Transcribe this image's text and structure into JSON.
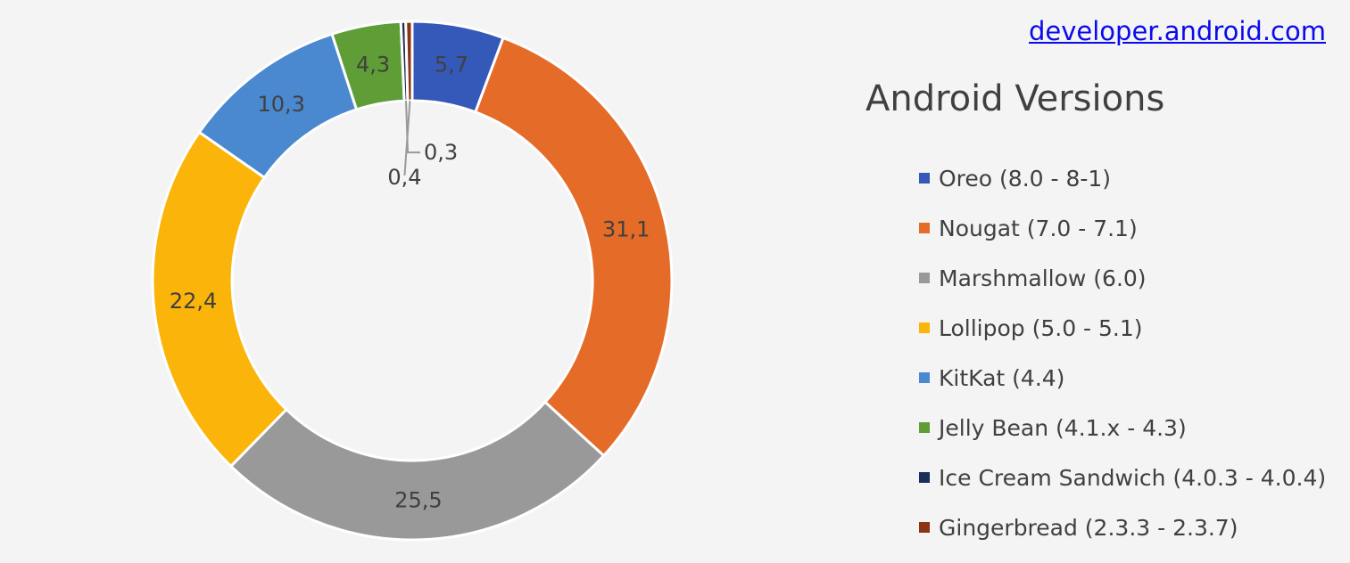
{
  "source": {
    "text": "developer.android.com"
  },
  "chart_data": {
    "type": "pie",
    "donut": true,
    "title": "Android Versions",
    "legend_position": "right",
    "categories": [
      "Oreo (8.0 - 8-1)",
      "Nougat (7.0 - 7.1)",
      "Marshmallow (6.0)",
      "Lollipop (5.0 - 5.1)",
      "KitKat (4.4)",
      "Jelly Bean (4.1.x - 4.3)",
      "Ice Cream Sandwich (4.0.3 - 4.0.4)",
      "Gingerbread (2.3.3 - 2.3.7)"
    ],
    "values": [
      5.7,
      31.1,
      25.5,
      22.4,
      10.3,
      4.3,
      0.3,
      0.4
    ],
    "data_labels": [
      "5,7",
      "31,1",
      "25,5",
      "22,4",
      "10,3",
      "4,3",
      "0,3",
      "0,4"
    ],
    "colors": [
      "#3559b8",
      "#e56b28",
      "#999999",
      "#fbb40a",
      "#4a89cf",
      "#5f9d36",
      "#1b2d5a",
      "#8b3414"
    ]
  }
}
